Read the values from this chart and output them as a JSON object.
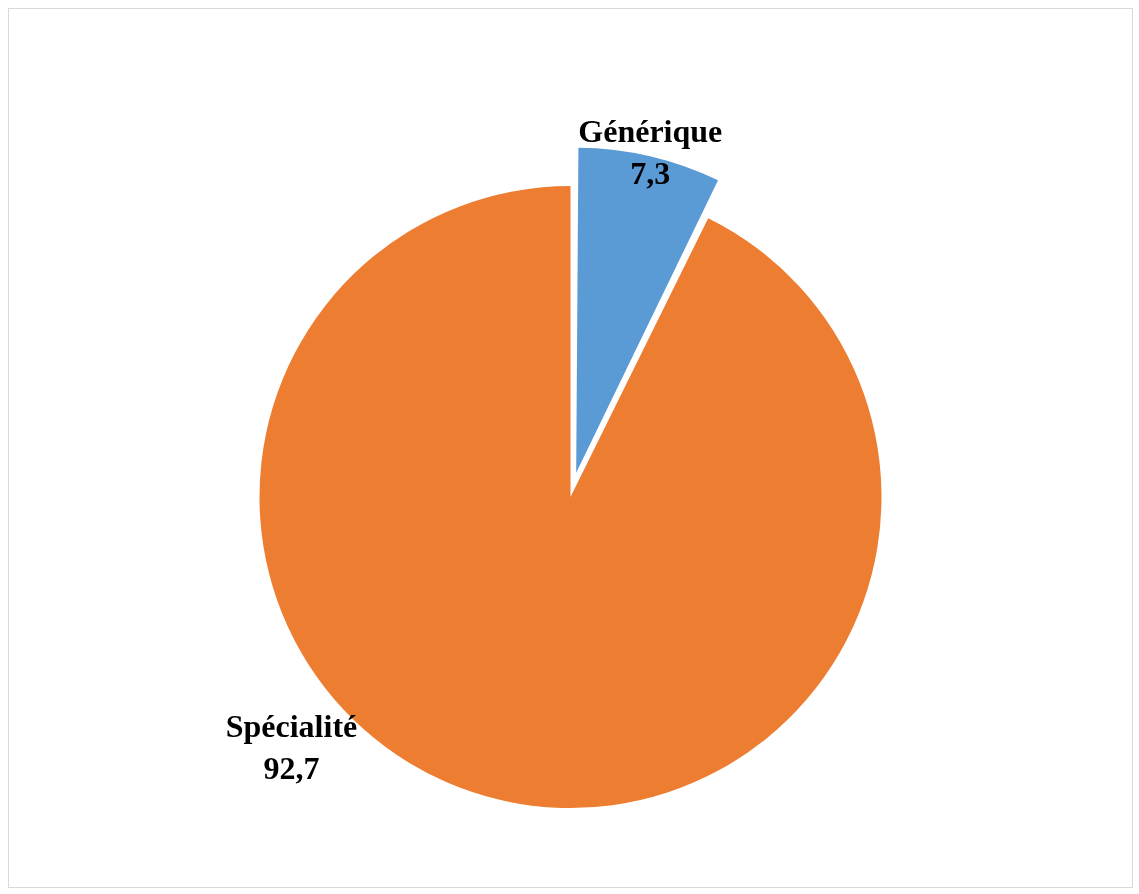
{
  "chart_data": {
    "type": "pie",
    "categories": [
      "Générique",
      "Spécialité"
    ],
    "values": [
      7.3,
      92.7
    ],
    "colors": [
      "#5b9bd5",
      "#ed7d31"
    ],
    "value_labels": [
      "7,3",
      "92,7"
    ],
    "legend": false
  }
}
